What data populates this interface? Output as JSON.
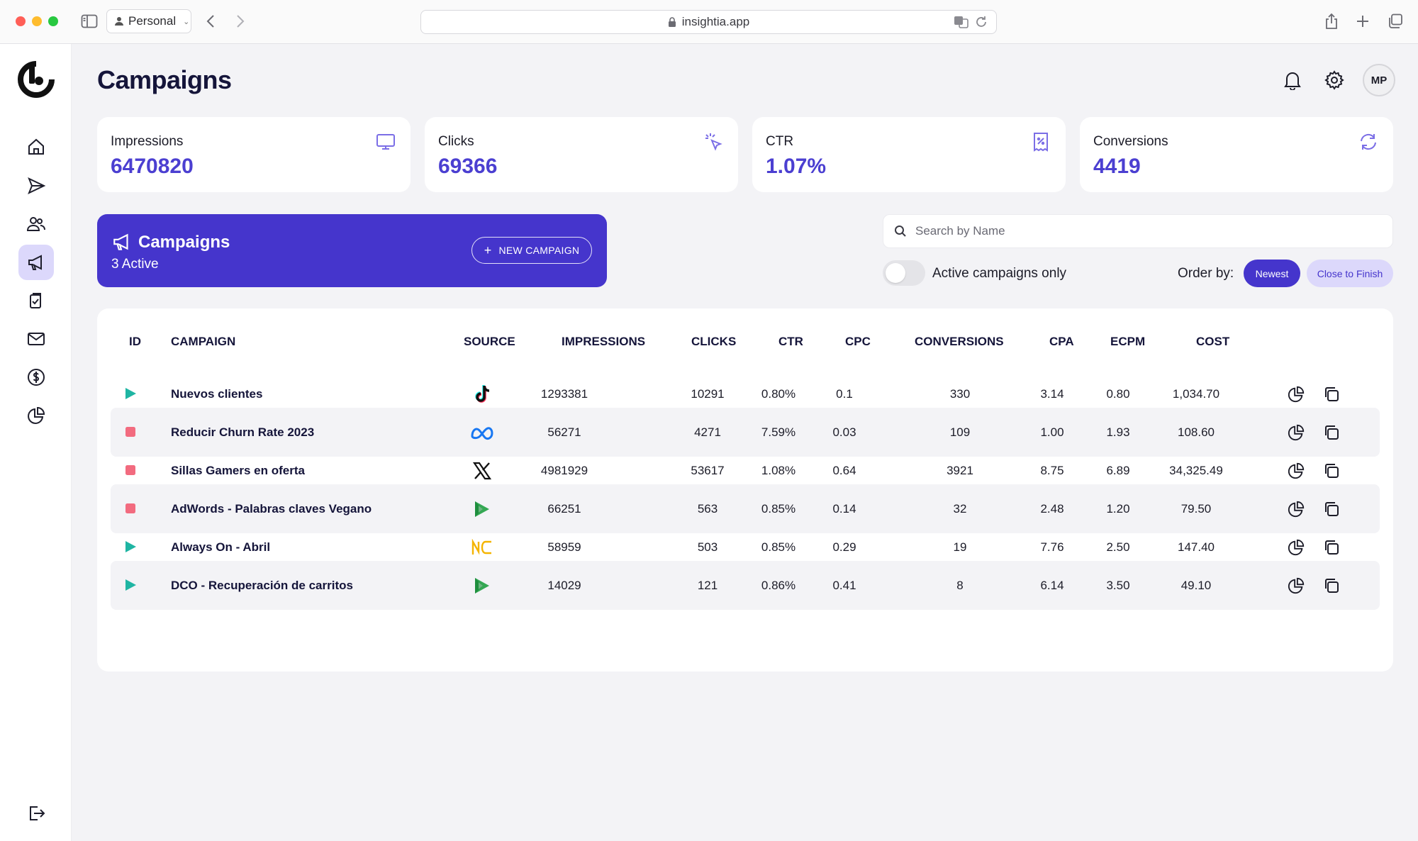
{
  "browser": {
    "profile": "Personal",
    "url": "insightia.app"
  },
  "page": {
    "title": "Campaigns",
    "avatar_initials": "MP"
  },
  "kpis": [
    {
      "label": "Impressions",
      "value": "6470820",
      "icon": "monitor-icon"
    },
    {
      "label": "Clicks",
      "value": "69366",
      "icon": "cursor-click-icon"
    },
    {
      "label": "CTR",
      "value": "1.07%",
      "icon": "receipt-percent-icon"
    },
    {
      "label": "Conversions",
      "value": "4419",
      "icon": "refresh-icon"
    }
  ],
  "banner": {
    "title": "Campaigns",
    "subtitle": "3 Active",
    "new_button": "NEW CAMPAIGN"
  },
  "search": {
    "placeholder": "Search by Name",
    "value": ""
  },
  "filters": {
    "toggle_label": "Active campaigns only",
    "toggle_on": false,
    "order_label": "Order by:",
    "order_newest": "Newest",
    "order_close": "Close to Finish",
    "selected": "Newest"
  },
  "table": {
    "headers": {
      "id": "ID",
      "campaign": "CAMPAIGN",
      "source": "SOURCE",
      "impressions": "IMPRESSIONS",
      "clicks": "CLICKS",
      "ctr": "CTR",
      "cpc": "CPC",
      "conversions": "CONVERSIONS",
      "cpa": "CPA",
      "ecpm": "ECPM",
      "cost": "COST"
    },
    "rows": [
      {
        "status": "active",
        "name": "Nuevos clientes",
        "source": "tiktok",
        "impressions": "1293381",
        "clicks": "10291",
        "ctr": "0.80%",
        "cpc": "0.1",
        "conversions": "330",
        "cpa": "3.14",
        "ecpm": "0.80",
        "cost": "1,034.70"
      },
      {
        "status": "stopped",
        "name": "Reducir Churn Rate 2023",
        "source": "meta",
        "impressions": "56271",
        "clicks": "4271",
        "ctr": "7.59%",
        "cpc": "0.03",
        "conversions": "109",
        "cpa": "1.00",
        "ecpm": "1.93",
        "cost": "108.60"
      },
      {
        "status": "stopped",
        "name": "Sillas Gamers en oferta",
        "source": "x",
        "impressions": "4981929",
        "clicks": "53617",
        "ctr": "1.08%",
        "cpc": "0.64",
        "conversions": "3921",
        "cpa": "8.75",
        "ecpm": "6.89",
        "cost": "34,325.49"
      },
      {
        "status": "stopped",
        "name": "AdWords - Palabras claves Vegano",
        "source": "google-ads",
        "impressions": "66251",
        "clicks": "563",
        "ctr": "0.85%",
        "cpc": "0.14",
        "conversions": "32",
        "cpa": "2.48",
        "ecpm": "1.20",
        "cost": "79.50"
      },
      {
        "status": "active",
        "name": "Always On - Abril",
        "source": "mercado-libre",
        "impressions": "58959",
        "clicks": "503",
        "ctr": "0.85%",
        "cpc": "0.29",
        "conversions": "19",
        "cpa": "7.76",
        "ecpm": "2.50",
        "cost": "147.40"
      },
      {
        "status": "active",
        "name": "DCO - Recuperación de carritos",
        "source": "google-ads",
        "impressions": "14029",
        "clicks": "121",
        "ctr": "0.86%",
        "cpc": "0.41",
        "conversions": "8",
        "cpa": "6.14",
        "ecpm": "3.50",
        "cost": "49.10"
      }
    ]
  },
  "colors": {
    "accent": "#4535cc",
    "accent_light": "#dcd8fb",
    "kpi_value": "#4b3fd1",
    "status_active": "#1fb5a3",
    "status_stopped": "#f26b7f"
  }
}
